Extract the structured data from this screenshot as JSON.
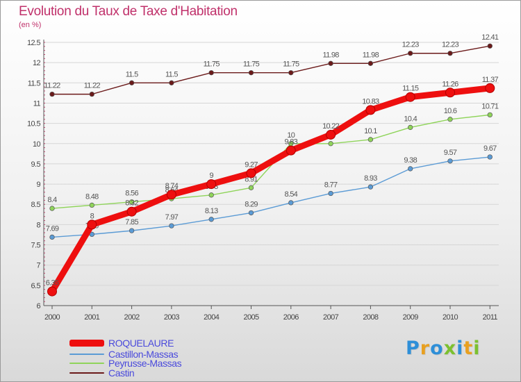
{
  "title": "Evolution du Taux de Taxe d'Habitation",
  "unit_label": "(en %)",
  "brand": {
    "letters": [
      {
        "ch": "P",
        "color": "#2e8fd8"
      },
      {
        "ch": "r",
        "color": "#e8a020"
      },
      {
        "ch": "o",
        "color": "#2e8fd8"
      },
      {
        "ch": "x",
        "color": "#7cc030"
      },
      {
        "ch": "i",
        "color": "#2e8fd8"
      },
      {
        "ch": "t",
        "color": "#e8a020"
      },
      {
        "ch": "i",
        "color": "#7cc030"
      }
    ]
  },
  "chart_data": {
    "type": "line",
    "title": "Evolution du Taux de Taxe d'Habitation",
    "ylabel": "(en %)",
    "xlabel": "",
    "ylim": [
      6,
      12.5
    ],
    "yticks": [
      "6",
      "6.5",
      "7",
      "7.5",
      "8",
      "8.5",
      "9",
      "9.5",
      "10",
      "10.5",
      "11",
      "11.5",
      "12",
      "12.5"
    ],
    "x": [
      "2000",
      "2001",
      "2002",
      "2003",
      "2004",
      "2005",
      "2006",
      "2007",
      "2008",
      "2009",
      "2010",
      "2011"
    ],
    "grid": "horizontal",
    "legend_position": "bottom-left",
    "series": [
      {
        "name": "Castin",
        "color": "#6b1a1a",
        "values": [
          11.22,
          11.22,
          11.5,
          11.5,
          11.75,
          11.75,
          11.75,
          11.98,
          11.98,
          12.23,
          12.23,
          12.41
        ],
        "labels": [
          "11.22",
          "11.22",
          "11.5",
          "11.5",
          "11.75",
          "11.75",
          "11.75",
          "11.98",
          "11.98",
          "12.23",
          "12.23",
          "12.41"
        ]
      },
      {
        "name": "Peyrusse-Massas",
        "color": "#8fd45a",
        "values": [
          8.4,
          8.48,
          8.56,
          8.64,
          8.73,
          8.91,
          10.0,
          10.0,
          10.1,
          10.4,
          10.6,
          10.71
        ],
        "labels": [
          "8.4",
          "8.48",
          "8.56",
          "8.64",
          "8.73",
          "8.91",
          "10",
          "10",
          "10.1",
          "10.4",
          "10.6",
          "10.71"
        ]
      },
      {
        "name": "Castillon-Massas",
        "color": "#5b9bd5",
        "values": [
          7.69,
          7.76,
          7.85,
          7.97,
          8.13,
          8.29,
          8.54,
          8.77,
          8.93,
          9.38,
          9.57,
          9.67
        ],
        "labels": [
          "7.69",
          "7.76",
          "7.85",
          "7.97",
          "8.13",
          "8.29",
          "8.54",
          "8.77",
          "8.93",
          "9.38",
          "9.57",
          "9.67"
        ]
      },
      {
        "name": "ROQUELAURE",
        "color": "#ee0f0f",
        "values": [
          6.35,
          8.0,
          8.32,
          8.74,
          9.0,
          9.27,
          9.83,
          10.22,
          10.83,
          11.15,
          11.26,
          11.37
        ],
        "labels": [
          "6.35",
          "8",
          "8.32",
          "8.74",
          "9",
          "9.27",
          "9.83",
          "10.22",
          "10.83",
          "11.15",
          "11.26",
          "11.37"
        ]
      }
    ],
    "legend": [
      {
        "name": "ROQUELAURE",
        "color": "#ee0f0f"
      },
      {
        "name": "Castillon-Massas",
        "color": "#5b9bd5"
      },
      {
        "name": "Peyrusse-Massas",
        "color": "#8fd45a"
      },
      {
        "name": "Castin",
        "color": "#6b1a1a"
      }
    ]
  }
}
